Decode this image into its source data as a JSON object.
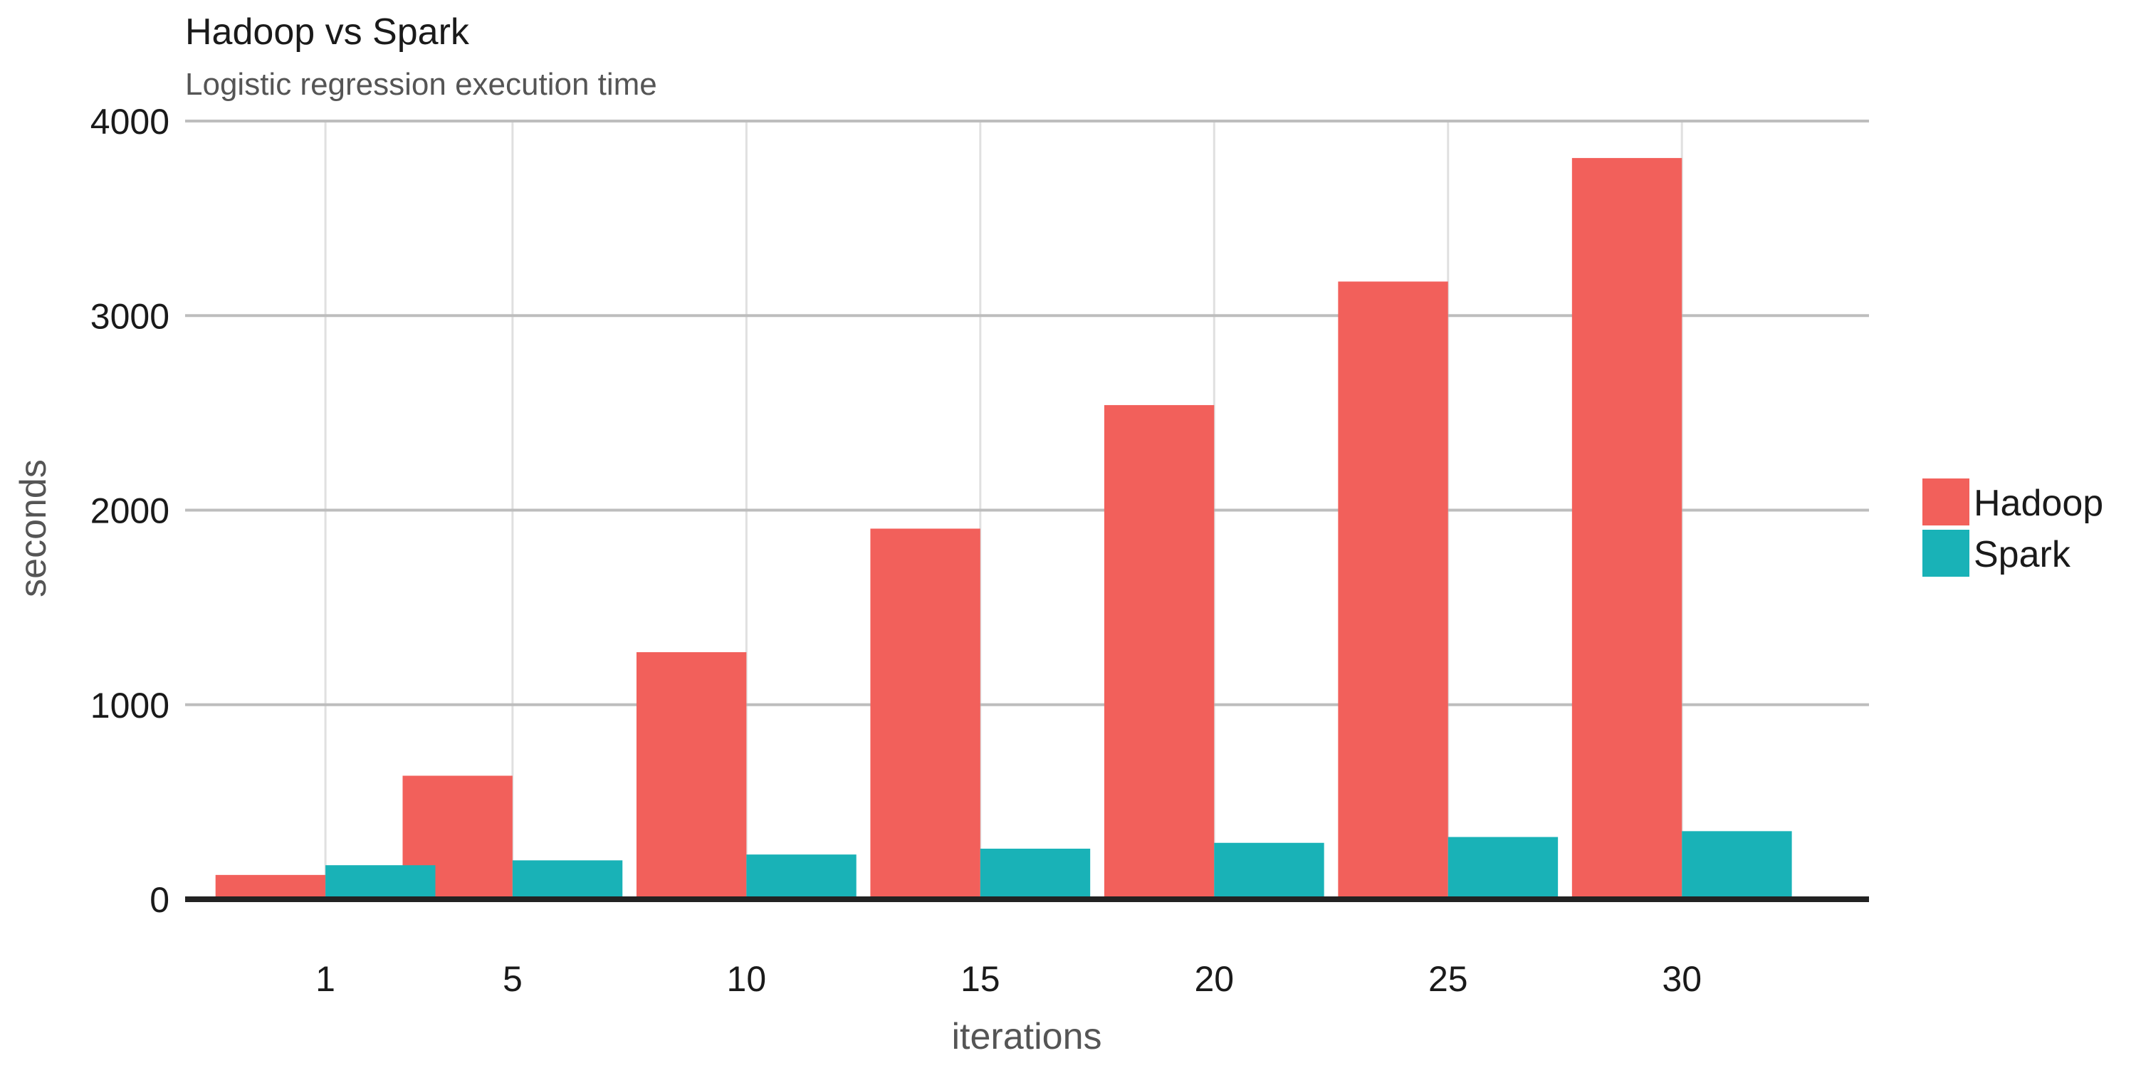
{
  "chart_data": {
    "type": "bar",
    "title": "Hadoop vs Spark",
    "subtitle": "Logistic regression execution time",
    "xlabel": "iterations",
    "ylabel": "seconds",
    "categories": [
      "1",
      "5",
      "10",
      "15",
      "20",
      "25",
      "30"
    ],
    "x": [
      1,
      5,
      10,
      15,
      20,
      25,
      30
    ],
    "series": [
      {
        "name": "Hadoop",
        "color": "#f2605b",
        "values": [
          125,
          635,
          1270,
          1905,
          2540,
          3175,
          3810
        ]
      },
      {
        "name": "Spark",
        "color": "#19b2b7",
        "values": [
          175,
          200,
          230,
          260,
          290,
          320,
          350
        ]
      }
    ],
    "ylim": [
      0,
      4000
    ],
    "xlim": [
      -2,
      34
    ],
    "yticks": [
      0,
      1000,
      2000,
      3000,
      4000
    ],
    "grid": true,
    "legend": "right"
  }
}
